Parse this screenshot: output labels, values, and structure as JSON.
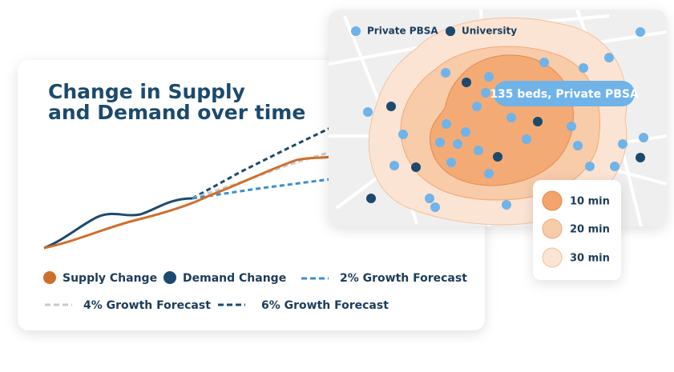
{
  "chart_card": {
    "title_lines": [
      "Change in Supply",
      "and Demand over time"
    ],
    "legend": [
      "Supply Change",
      "Demand Change",
      "2% Growth Forecast",
      "4% Growth Forecast",
      "6% Growth Forecast"
    ]
  },
  "map_card": {
    "legend": [
      "Private PBSA",
      "University"
    ],
    "tooltip": "135 beds, Private PBSA",
    "isochrones": [
      "10 min",
      "20 min",
      "30 min"
    ]
  }
}
